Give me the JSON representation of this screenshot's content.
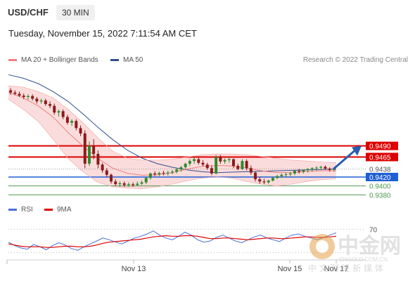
{
  "header": {
    "symbol": "USD/CHF",
    "timeframe": "30 MIN",
    "datetime": "Tuesday, November 15, 2022 7:11:54 AM CET"
  },
  "legend_main": [
    {
      "label": "MA 20 + Bollinger Bands",
      "color": "#f08080"
    },
    {
      "label": "MA 50",
      "color": "#2f4f8f"
    }
  ],
  "copyright": "Research © 2022 Trading Central",
  "legend_rsi": [
    {
      "label": "RSI",
      "color": "#4a6fd8"
    },
    {
      "label": "9MA",
      "color": "#dd0000"
    }
  ],
  "watermark": {
    "brand": "中金网",
    "site": "CNGOLD.COM.CN",
    "tagline": "中 文 财 经 新 媒 体"
  },
  "colors": {
    "bull": "#2d8a2d",
    "bear": "#8b1a1a",
    "resistance": "#dd0000",
    "support": "#1f5fd6",
    "support_line": "#4f9a4f",
    "band_fill": "#f9d0d0"
  },
  "chart_data": [
    {
      "type": "candlestick",
      "xlabel": "",
      "ylabel": "",
      "x_ticks": [
        "Nov 13",
        "Nov 15",
        "Nov 17"
      ],
      "ylim": [
        0.936,
        0.966
      ],
      "series": [
        {
          "kind": "ohlc",
          "values": [
            [
              0.9615,
              0.962,
              0.9605,
              0.961
            ],
            [
              0.961,
              0.9615,
              0.9604,
              0.9607
            ],
            [
              0.9607,
              0.9612,
              0.96,
              0.9603
            ],
            [
              0.9603,
              0.9608,
              0.9595,
              0.96
            ],
            [
              0.96,
              0.9606,
              0.9594,
              0.9602
            ],
            [
              0.9602,
              0.9606,
              0.9592,
              0.9596
            ],
            [
              0.9596,
              0.96,
              0.9585,
              0.959
            ],
            [
              0.959,
              0.9596,
              0.9585,
              0.9592
            ],
            [
              0.9592,
              0.9596,
              0.958,
              0.9584
            ],
            [
              0.9584,
              0.959,
              0.9575,
              0.958
            ],
            [
              0.958,
              0.9585,
              0.956,
              0.9565
            ],
            [
              0.9565,
              0.9572,
              0.9556,
              0.9568
            ],
            [
              0.9568,
              0.9572,
              0.955,
              0.9555
            ],
            [
              0.9555,
              0.956,
              0.9538,
              0.9542
            ],
            [
              0.9542,
              0.955,
              0.9535,
              0.9546
            ],
            [
              0.9546,
              0.955,
              0.9525,
              0.953
            ],
            [
              0.953,
              0.9536,
              0.9512,
              0.9518
            ],
            [
              0.9518,
              0.9525,
              0.944,
              0.945
            ],
            [
              0.945,
              0.95,
              0.9445,
              0.949
            ],
            [
              0.949,
              0.9505,
              0.946,
              0.9472
            ],
            [
              0.9472,
              0.948,
              0.944,
              0.9448
            ],
            [
              0.9448,
              0.9452,
              0.943,
              0.9435
            ],
            [
              0.9435,
              0.944,
              0.942,
              0.9425
            ],
            [
              0.9425,
              0.9428,
              0.9405,
              0.941
            ],
            [
              0.941,
              0.9415,
              0.94,
              0.9404
            ],
            [
              0.9404,
              0.941,
              0.9398,
              0.9406
            ],
            [
              0.9406,
              0.941,
              0.9398,
              0.9402
            ],
            [
              0.9402,
              0.9408,
              0.9398,
              0.9404
            ],
            [
              0.9404,
              0.9408,
              0.9398,
              0.9402
            ],
            [
              0.9402,
              0.941,
              0.94,
              0.9405
            ],
            [
              0.9405,
              0.9412,
              0.9402,
              0.9408
            ],
            [
              0.9408,
              0.942,
              0.9404,
              0.9418
            ],
            [
              0.9418,
              0.943,
              0.9414,
              0.9428
            ],
            [
              0.9428,
              0.9433,
              0.9422,
              0.9426
            ],
            [
              0.9426,
              0.9432,
              0.9422,
              0.9429
            ],
            [
              0.9429,
              0.9434,
              0.9424,
              0.9428
            ],
            [
              0.9428,
              0.9434,
              0.9423,
              0.943
            ],
            [
              0.943,
              0.9436,
              0.9426,
              0.9432
            ],
            [
              0.9432,
              0.944,
              0.9428,
              0.9437
            ],
            [
              0.9437,
              0.9445,
              0.9432,
              0.9442
            ],
            [
              0.9442,
              0.9452,
              0.9438,
              0.945
            ],
            [
              0.945,
              0.946,
              0.9445,
              0.9456
            ],
            [
              0.9456,
              0.9465,
              0.945,
              0.946
            ],
            [
              0.946,
              0.9465,
              0.9448,
              0.9452
            ],
            [
              0.9452,
              0.9458,
              0.9444,
              0.9448
            ],
            [
              0.9448,
              0.9452,
              0.9436,
              0.944
            ],
            [
              0.944,
              0.9446,
              0.9424,
              0.9428
            ],
            [
              0.9428,
              0.947,
              0.9426,
              0.9465
            ],
            [
              0.9465,
              0.947,
              0.945,
              0.9455
            ],
            [
              0.9455,
              0.9462,
              0.945,
              0.9458
            ],
            [
              0.9458,
              0.9465,
              0.9452,
              0.946
            ],
            [
              0.946,
              0.9462,
              0.944,
              0.9445
            ],
            [
              0.9445,
              0.945,
              0.9435,
              0.9438
            ],
            [
              0.9438,
              0.946,
              0.9436,
              0.9456
            ],
            [
              0.9456,
              0.946,
              0.9435,
              0.944
            ],
            [
              0.944,
              0.9446,
              0.9425,
              0.943
            ],
            [
              0.943,
              0.9432,
              0.941,
              0.9415
            ],
            [
              0.9415,
              0.942,
              0.9405,
              0.941
            ],
            [
              0.941,
              0.9416,
              0.9404,
              0.9408
            ],
            [
              0.9408,
              0.9414,
              0.9405,
              0.9412
            ],
            [
              0.9412,
              0.942,
              0.941,
              0.9418
            ],
            [
              0.9418,
              0.9425,
              0.9415,
              0.9422
            ],
            [
              0.9422,
              0.9428,
              0.9418,
              0.9425
            ],
            [
              0.9425,
              0.943,
              0.942,
              0.9426
            ],
            [
              0.9426,
              0.9432,
              0.9422,
              0.9428
            ],
            [
              0.9428,
              0.9436,
              0.9424,
              0.9434
            ],
            [
              0.9434,
              0.9438,
              0.9428,
              0.9432
            ],
            [
              0.9432,
              0.9437,
              0.9428,
              0.9435
            ],
            [
              0.9435,
              0.944,
              0.943,
              0.9438
            ],
            [
              0.9438,
              0.9442,
              0.9432,
              0.944
            ],
            [
              0.944,
              0.9444,
              0.9434,
              0.9441
            ],
            [
              0.9441,
              0.9445,
              0.9436,
              0.9443
            ],
            [
              0.9443,
              0.9446,
              0.9436,
              0.9439
            ],
            [
              0.9439,
              0.9442,
              0.9432,
              0.9436
            ],
            [
              0.9436,
              0.944,
              0.9432,
              0.9438
            ]
          ]
        },
        {
          "name": "MA 20",
          "kind": "line",
          "values": [
            0.961,
            0.9598,
            0.958,
            0.9555,
            0.952,
            0.949,
            0.9462,
            0.944,
            0.9428,
            0.9424,
            0.9425,
            0.943,
            0.9438,
            0.9444,
            0.9446,
            0.9445,
            0.944,
            0.9434,
            0.943,
            0.943,
            0.9432,
            0.9434,
            0.9434
          ]
        },
        {
          "name": "Bollinger Upper",
          "kind": "line",
          "values": [
            0.9625,
            0.9622,
            0.9612,
            0.9598,
            0.9572,
            0.9542,
            0.9508,
            0.9478,
            0.9462,
            0.9458,
            0.9458,
            0.946,
            0.9465,
            0.947,
            0.9472,
            0.9472,
            0.947,
            0.9466,
            0.9462,
            0.9458,
            0.9456,
            0.9454,
            0.9452
          ]
        },
        {
          "name": "Bollinger Lower",
          "kind": "line",
          "values": [
            0.9595,
            0.9572,
            0.9545,
            0.9505,
            0.9462,
            0.9432,
            0.9408,
            0.9398,
            0.9395,
            0.9394,
            0.9398,
            0.9404,
            0.9412,
            0.9418,
            0.942,
            0.9418,
            0.941,
            0.9404,
            0.94,
            0.9404,
            0.941,
            0.9414,
            0.9416
          ]
        },
        {
          "name": "MA 50",
          "kind": "line",
          "values": [
            0.965,
            0.9642,
            0.963,
            0.9612,
            0.959,
            0.9562,
            0.9532,
            0.9504,
            0.948,
            0.9462,
            0.945,
            0.9442,
            0.9436,
            0.9432,
            0.943,
            0.9431,
            0.9432,
            0.9433,
            0.9434,
            0.9435,
            0.9436,
            0.9437,
            0.9438
          ]
        }
      ],
      "levels": [
        {
          "value": 0.949,
          "label": "0.9490",
          "kind": "resistance"
        },
        {
          "value": 0.9465,
          "label": "0.9465",
          "kind": "resistance"
        },
        {
          "value": 0.9438,
          "label": "0.9438",
          "kind": "current"
        },
        {
          "value": 0.942,
          "label": "0.9420",
          "kind": "support"
        },
        {
          "value": 0.94,
          "label": "0.9400",
          "kind": "support"
        },
        {
          "value": 0.938,
          "label": "0.9380",
          "kind": "support"
        }
      ],
      "forecast_arrow": {
        "from": 0.9438,
        "to": 0.949
      }
    },
    {
      "type": "line",
      "xlabel": "",
      "ylabel": "",
      "yticks": [
        "70"
      ],
      "ylim": [
        20,
        80
      ],
      "series": [
        {
          "name": "RSI",
          "values": [
            48,
            42,
            38,
            36,
            44,
            40,
            35,
            42,
            47,
            43,
            37,
            34,
            40,
            45,
            50,
            55,
            52,
            48,
            45,
            50,
            55,
            58,
            62,
            67,
            60,
            55,
            52,
            58,
            65,
            60,
            52,
            48,
            50,
            56,
            60,
            55,
            50,
            47,
            52,
            57,
            60,
            55,
            52,
            49,
            55,
            60,
            62,
            58,
            55,
            52,
            56,
            60,
            64
          ]
        },
        {
          "name": "9MA",
          "values": [
            45,
            43,
            41,
            40,
            40,
            40,
            39,
            39,
            40,
            41,
            41,
            40,
            40,
            41,
            43,
            46,
            48,
            49,
            50,
            51,
            52,
            53,
            55,
            57,
            58,
            59,
            58,
            58,
            59,
            59,
            58,
            56,
            54,
            54,
            55,
            55,
            54,
            53,
            52,
            53,
            54,
            55,
            55,
            54,
            54,
            55,
            56,
            57,
            57,
            56,
            56,
            57,
            58
          ]
        }
      ]
    }
  ]
}
